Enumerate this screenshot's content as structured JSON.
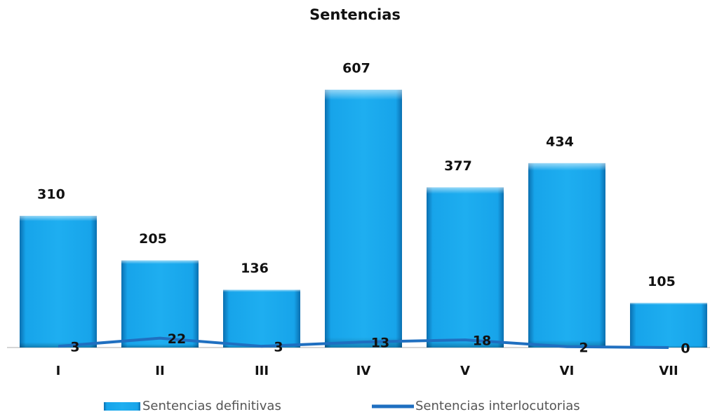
{
  "chart_data": {
    "type": "bar",
    "title": "Sentencias",
    "categories": [
      "I",
      "II",
      "III",
      "IV",
      "V",
      "VI",
      "VII"
    ],
    "series": [
      {
        "name": "Sentencias definitivas",
        "type": "bar",
        "color": "#12a0e6",
        "values": [
          310,
          205,
          136,
          607,
          377,
          434,
          105
        ]
      },
      {
        "name": "Sentencias interlocutorias",
        "type": "line",
        "color": "#1f6fc0",
        "values": [
          3,
          22,
          3,
          13,
          18,
          2,
          0
        ]
      }
    ]
  }
}
